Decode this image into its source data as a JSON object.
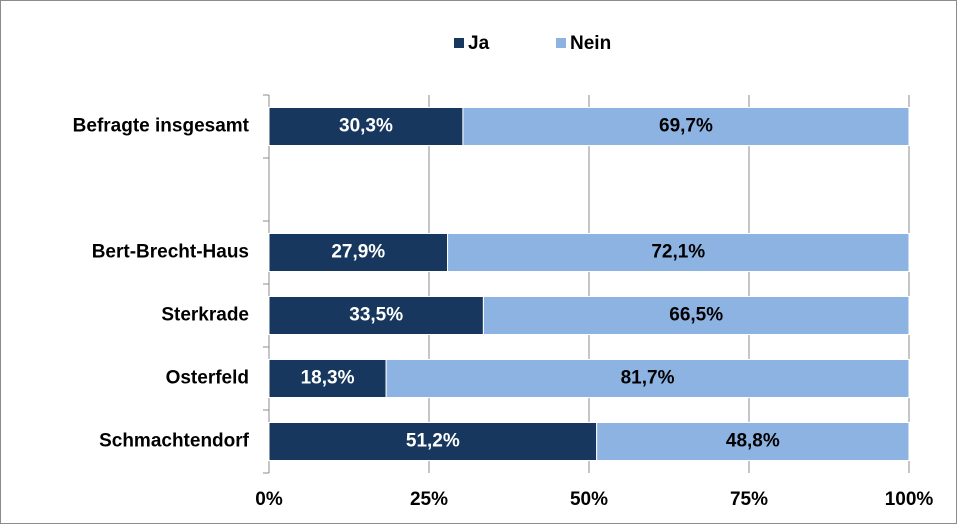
{
  "chart_data": {
    "type": "stacked_barh",
    "categories": [
      "Befragte insgesamt",
      null,
      "Bert-Brecht-Haus",
      "Sterkrade",
      "Osterfeld",
      "Schmachtendorf"
    ],
    "series": [
      {
        "name": "Ja",
        "color": "#17375e",
        "label_color": "#ffffff",
        "values": [
          30.3,
          null,
          27.9,
          33.5,
          18.3,
          51.2
        ],
        "value_labels": [
          "30,3%",
          null,
          "27,9%",
          "33,5%",
          "18,3%",
          "51,2%"
        ]
      },
      {
        "name": "Nein",
        "color": "#8db3e2",
        "label_color": "#000000",
        "values": [
          69.7,
          null,
          72.1,
          66.5,
          81.7,
          48.8
        ],
        "value_labels": [
          "69,7%",
          null,
          "72,1%",
          "66,5%",
          "81,7%",
          "48,8%"
        ]
      }
    ],
    "xlim": [
      0,
      100
    ],
    "xticks": [
      {
        "value": 0,
        "label": "0%"
      },
      {
        "value": 25,
        "label": "25%"
      },
      {
        "value": 50,
        "label": "50%"
      },
      {
        "value": 75,
        "label": "75%"
      },
      {
        "value": 100,
        "label": "100%"
      }
    ],
    "grid": true,
    "legend": "top"
  }
}
